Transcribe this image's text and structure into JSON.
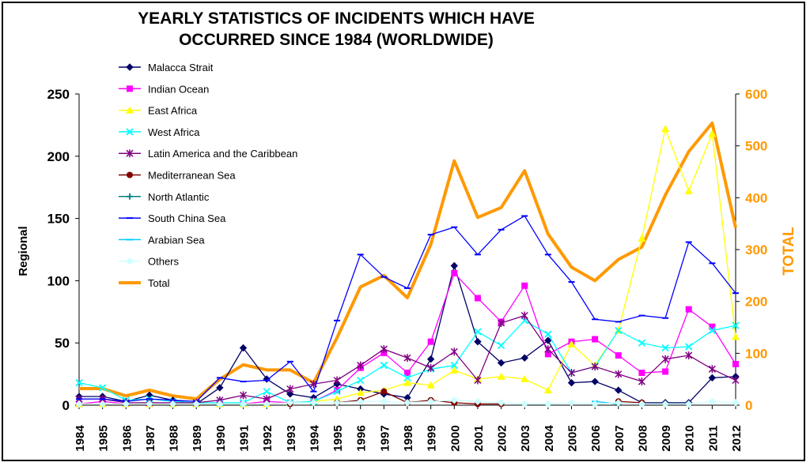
{
  "chart_data": {
    "type": "line",
    "title_lines": [
      "YEARLY STATISTICS OF INCIDENTS WHICH HAVE",
      "OCCURRED SINCE 1984 (WORLDWIDE)"
    ],
    "ylabel": "Regional",
    "y2label": "TOTAL",
    "x": [
      "1984",
      "1985",
      "1986",
      "1987",
      "1988",
      "1989",
      "1990",
      "1991",
      "1992",
      "1993",
      "1994",
      "1995",
      "1996",
      "1997",
      "1998",
      "1999",
      "2000",
      "2001",
      "2002",
      "2003",
      "2004",
      "2005",
      "2006",
      "2007",
      "2008",
      "2009",
      "2010",
      "2011",
      "2012"
    ],
    "ylim": [
      0,
      250
    ],
    "y_ticks": [
      0,
      50,
      100,
      150,
      200,
      250
    ],
    "y2lim": [
      0,
      600
    ],
    "y2_ticks": [
      0,
      100,
      200,
      300,
      400,
      500,
      600
    ],
    "grid": false,
    "legend_position": "top-left",
    "series": [
      {
        "name": "Malacca Strait",
        "color": "#000066",
        "marker": "diamond",
        "axis": "left",
        "values": [
          7,
          7,
          3,
          8,
          4,
          1,
          14,
          46,
          21,
          9,
          6,
          17,
          13,
          9,
          6,
          37,
          112,
          51,
          34,
          38,
          52,
          18,
          19,
          12,
          2,
          2,
          2,
          22,
          23
        ]
      },
      {
        "name": "Indian Ocean",
        "color": "#ff00ff",
        "marker": "square",
        "axis": "left",
        "values": [
          1,
          3,
          1,
          1,
          2,
          1,
          1,
          1,
          3,
          2,
          3,
          12,
          30,
          42,
          26,
          51,
          106,
          86,
          67,
          96,
          41,
          51,
          53,
          40,
          26,
          27,
          77,
          63,
          33
        ]
      },
      {
        "name": "East Africa",
        "color": "#ffff00",
        "marker": "triangle",
        "axis": "left",
        "values": [
          1,
          1,
          1,
          1,
          1,
          1,
          1,
          1,
          1,
          2,
          3,
          5,
          10,
          12,
          18,
          16,
          28,
          21,
          23,
          21,
          12,
          49,
          32,
          60,
          134,
          222,
          172,
          218,
          55
        ]
      },
      {
        "name": "West Africa",
        "color": "#00ffff",
        "marker": "x",
        "axis": "left",
        "values": [
          18,
          14,
          4,
          5,
          3,
          2,
          2,
          2,
          11,
          2,
          3,
          11,
          20,
          32,
          22,
          29,
          32,
          59,
          48,
          68,
          57,
          26,
          31,
          60,
          50,
          46,
          47,
          60,
          64
        ]
      },
      {
        "name": "Latin America and the Caribbean",
        "color": "#800080",
        "marker": "star",
        "axis": "left",
        "values": [
          5,
          5,
          2,
          2,
          2,
          2,
          4,
          8,
          5,
          13,
          17,
          20,
          32,
          45,
          38,
          30,
          43,
          20,
          66,
          72,
          45,
          26,
          31,
          25,
          19,
          37,
          40,
          29,
          20
        ]
      },
      {
        "name": "Mediterranean Sea",
        "color": "#800000",
        "marker": "circle",
        "axis": "left",
        "values": [
          null,
          null,
          null,
          null,
          null,
          null,
          null,
          null,
          null,
          1,
          null,
          2,
          4,
          11,
          2,
          4,
          2,
          1,
          1,
          null,
          null,
          null,
          null,
          3,
          2,
          null,
          null,
          null,
          null
        ]
      },
      {
        "name": "North Atlantic",
        "color": "#008080",
        "marker": "plus",
        "axis": "left",
        "values": [
          null,
          null,
          null,
          null,
          null,
          null,
          null,
          null,
          null,
          null,
          null,
          null,
          null,
          null,
          null,
          null,
          null,
          null,
          null,
          null,
          null,
          null,
          null,
          null,
          null,
          null,
          null,
          null,
          null
        ]
      },
      {
        "name": "South China Sea",
        "color": "#0000ff",
        "marker": "dash",
        "axis": "left",
        "values": [
          5,
          5,
          3,
          5,
          4,
          3,
          22,
          19,
          20,
          35,
          11,
          68,
          121,
          103,
          94,
          137,
          143,
          121,
          141,
          152,
          121,
          99,
          69,
          67,
          72,
          70,
          131,
          114,
          90
        ]
      },
      {
        "name": "Arabian Sea",
        "color": "#00ccff",
        "marker": "dash",
        "axis": "left",
        "values": [
          null,
          null,
          null,
          null,
          null,
          null,
          null,
          null,
          null,
          null,
          null,
          null,
          null,
          null,
          null,
          null,
          null,
          null,
          null,
          null,
          null,
          null,
          3,
          1,
          null,
          null,
          null,
          null,
          null
        ]
      },
      {
        "name": "Others",
        "color": "#ccffff",
        "marker": "diamond",
        "axis": "left",
        "values": [
          1,
          1,
          1,
          1,
          1,
          1,
          1,
          1,
          1,
          2,
          2,
          2,
          3,
          3,
          2,
          3,
          4,
          3,
          2,
          1,
          1,
          2,
          1,
          2,
          1,
          1,
          1,
          3,
          2
        ]
      },
      {
        "name": "Total",
        "color": "#ff9900",
        "marker": "none",
        "axis": "right",
        "line_width": 4,
        "values": [
          32,
          32,
          18,
          29,
          18,
          12,
          50,
          78,
          68,
          68,
          43,
          130,
          228,
          250,
          207,
          310,
          471,
          362,
          381,
          452,
          330,
          266,
          240,
          281,
          305,
          405,
          489,
          544,
          342
        ]
      }
    ]
  }
}
